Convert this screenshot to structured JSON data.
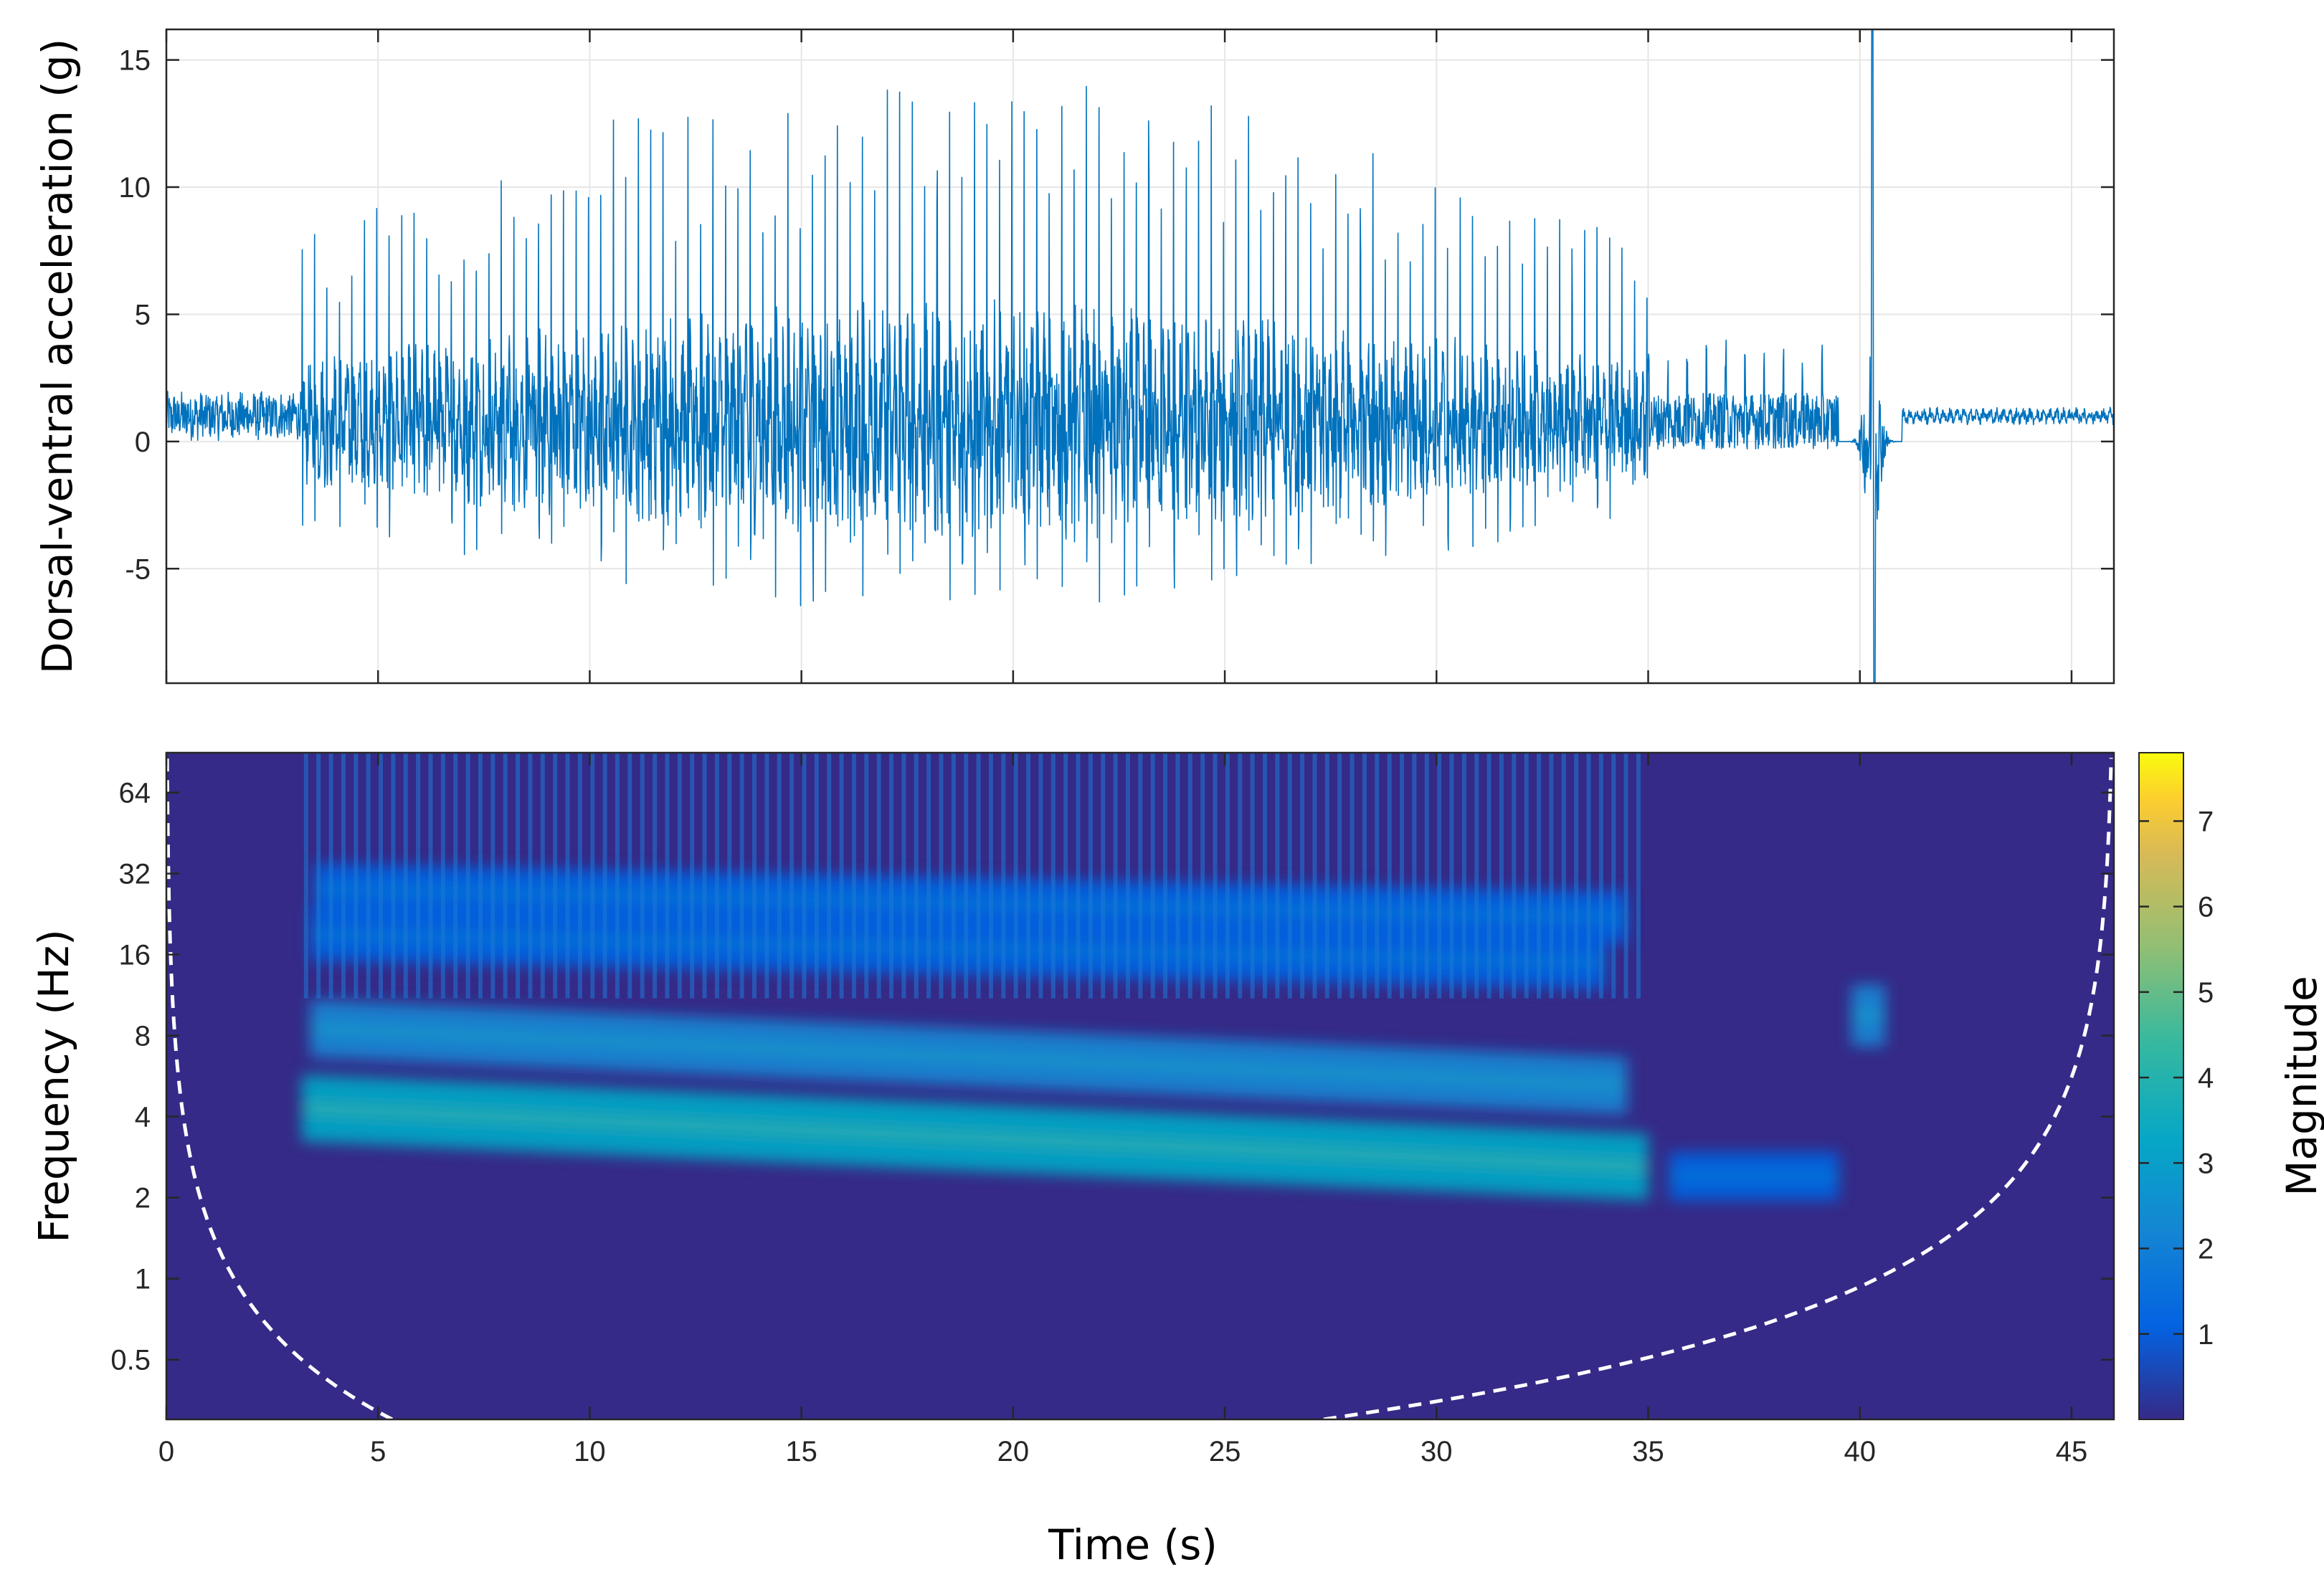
{
  "chart_data": [
    {
      "type": "line",
      "title": "",
      "xlabel": "",
      "ylabel": "Dorsal-ventral acceleration (g)",
      "xlim": [
        0,
        46
      ],
      "ylim": [
        -9.5,
        16.2
      ],
      "grid": true,
      "line_color": "#0072BD",
      "x_ticks": [
        0,
        5,
        10,
        15,
        20,
        25,
        30,
        35,
        40,
        45
      ],
      "y_ticks": [
        -5,
        0,
        5,
        10,
        15
      ],
      "y_tick_labels": [
        "-5",
        "0",
        "5",
        "10",
        "15"
      ],
      "segments": [
        {
          "t_start": 0.0,
          "t_end": 3.2,
          "baseline": 1.0,
          "amp_pos": 1.2,
          "amp_neg": 1.5,
          "pulse_rate": 0,
          "description_level": "quiet"
        },
        {
          "t_start": 3.2,
          "t_end": 35.0,
          "baseline": 0.8,
          "amp_pos": 14.0,
          "amp_neg": 7.5,
          "pulse_rate": 3.4,
          "description_level": "rhythmic"
        },
        {
          "t_start": 35.0,
          "t_end": 39.5,
          "baseline": 1.0,
          "amp_pos": 3.0,
          "amp_neg": 1.5,
          "pulse_rate": 2.2,
          "description_level": "low"
        },
        {
          "t_start": 39.5,
          "t_end": 41.0,
          "baseline": 0.0,
          "amp_pos": 15.0,
          "amp_neg": 9.5,
          "pulse_rate": 0,
          "description_level": "burst"
        },
        {
          "t_start": 41.0,
          "t_end": 46.0,
          "baseline": 1.0,
          "amp_pos": 0.3,
          "amp_neg": 0.3,
          "pulse_rate": 0,
          "description_level": "quiet"
        }
      ]
    },
    {
      "type": "heatmap",
      "title": "",
      "xlabel": "Time (s)",
      "ylabel": "Frequency (Hz)",
      "xlim": [
        0,
        46
      ],
      "ylim_hz": [
        0.3,
        90
      ],
      "y_scale": "log2",
      "x_ticks": [
        0,
        5,
        10,
        15,
        20,
        25,
        30,
        35,
        40,
        45
      ],
      "x_tick_labels": [
        "0",
        "5",
        "10",
        "15",
        "20",
        "25",
        "30",
        "35",
        "40",
        "45"
      ],
      "y_ticks": [
        0.5,
        1,
        2,
        4,
        8,
        16,
        32,
        64
      ],
      "y_tick_labels": [
        "0.5",
        "1",
        "2",
        "4",
        "8",
        "16",
        "32",
        "64"
      ],
      "background_magnitude": 0.15,
      "bands": [
        {
          "t_start": 3.2,
          "t_end": 35.0,
          "f_start_hz": 4.3,
          "f_end_hz": 2.6,
          "peak_magnitude": 3.4
        },
        {
          "t_start": 3.4,
          "t_end": 34.5,
          "f_start_hz": 8.5,
          "f_end_hz": 5.2,
          "peak_magnitude": 2.3
        },
        {
          "t_start": 3.4,
          "t_end": 34.0,
          "f_start_hz": 19.0,
          "f_end_hz": 15.0,
          "peak_magnitude": 1.8
        },
        {
          "t_start": 3.5,
          "t_end": 34.5,
          "f_start_hz": 28.0,
          "f_end_hz": 22.0,
          "peak_magnitude": 1.6
        },
        {
          "t_start": 35.5,
          "t_end": 39.5,
          "f_start_hz": 2.4,
          "f_end_hz": 2.4,
          "peak_magnitude": 1.3
        },
        {
          "t_start": 39.8,
          "t_end": 40.6,
          "f_start_hz": 9.5,
          "f_end_hz": 9.5,
          "peak_magnitude": 2.8
        }
      ],
      "cone_of_influence": "dashed-white",
      "colorbar": {
        "label": "Magnitude",
        "range": [
          0,
          7.8
        ],
        "ticks": [
          1,
          2,
          3,
          4,
          5,
          6,
          7
        ],
        "tick_labels": [
          "1",
          "2",
          "3",
          "4",
          "5",
          "6",
          "7"
        ],
        "colormap": "parula"
      }
    }
  ]
}
